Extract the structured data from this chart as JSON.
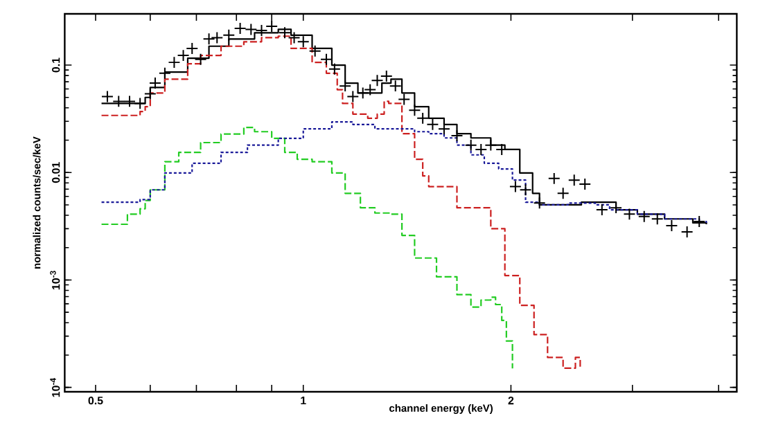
{
  "chart_data": {
    "type": "step",
    "xlabel": "channel energy (keV)",
    "ylabel": "normalized counts/sec/keV",
    "log": "xy",
    "grid": false,
    "xlim": [
      0.451,
      4.25
    ],
    "ylim": [
      9.1e-05,
      0.3
    ],
    "xticks": [
      0.5,
      {
        "value": 0.6,
        "label": null
      },
      {
        "value": 0.7,
        "label": null
      },
      {
        "value": 0.8,
        "label": null
      },
      {
        "value": 0.9,
        "label": null
      },
      1,
      2,
      {
        "value": 3,
        "label": null
      },
      {
        "value": 4,
        "label": null
      }
    ],
    "yticks": [
      {
        "value": 0.0001,
        "label": "10$^{-4}$"
      },
      {
        "value": 0.001,
        "label": "10$^{-3}$"
      },
      0.01,
      0.1
    ],
    "series": [
      {
        "type": "scatter",
        "marker": "cross",
        "color": "#000000",
        "x": [
          0.52,
          0.54,
          0.56,
          0.58,
          0.6,
          0.61,
          0.63,
          0.65,
          0.67,
          0.69,
          0.71,
          0.73,
          0.75,
          0.78,
          0.81,
          0.84,
          0.87,
          0.9,
          0.94,
          0.97,
          1.0,
          1.04,
          1.08,
          1.11,
          1.15,
          1.18,
          1.22,
          1.25,
          1.28,
          1.32,
          1.36,
          1.4,
          1.45,
          1.49,
          1.54,
          1.6,
          1.67,
          1.75,
          1.81,
          1.87,
          1.94,
          2.03,
          2.1,
          2.2,
          2.31,
          2.38,
          2.47,
          2.56,
          2.71,
          2.84,
          2.97,
          3.12,
          3.26,
          3.42,
          3.6,
          3.75
        ],
        "values": [
          0.051,
          0.046,
          0.046,
          0.044,
          0.054,
          0.068,
          0.084,
          0.106,
          0.123,
          0.143,
          0.113,
          0.175,
          0.18,
          0.19,
          0.22,
          0.215,
          0.21,
          0.23,
          0.2,
          0.18,
          0.165,
          0.135,
          0.113,
          0.092,
          0.064,
          0.051,
          0.055,
          0.059,
          0.072,
          0.079,
          0.064,
          0.048,
          0.038,
          0.032,
          0.028,
          0.0255,
          0.022,
          0.018,
          0.0164,
          0.018,
          0.0164,
          0.0074,
          0.0069,
          0.0052,
          0.0088,
          0.0064,
          0.0085,
          0.0078,
          0.0045,
          0.0047,
          0.0041,
          0.0039,
          0.0037,
          0.0032,
          0.0028,
          0.0035
        ]
      },
      {
        "line_style": "solid",
        "color": "#000000",
        "x": [
          0.51,
          0.58,
          0.59,
          0.6,
          0.63,
          0.68,
          0.73,
          0.78,
          0.85,
          0.92,
          0.96,
          1.03,
          1.1,
          1.15,
          1.2,
          1.24,
          1.3,
          1.34,
          1.39,
          1.45,
          1.52,
          1.6,
          1.67,
          1.75,
          1.87,
          1.96,
          2.06,
          2.15,
          2.2,
          2.53,
          2.71,
          2.84,
          3.05,
          3.34,
          3.67,
          3.84
        ],
        "values": [
          0.044,
          0.044,
          0.05,
          0.062,
          0.086,
          0.116,
          0.15,
          0.175,
          0.2,
          0.215,
          0.19,
          0.143,
          0.1,
          0.068,
          0.055,
          0.055,
          0.068,
          0.074,
          0.055,
          0.041,
          0.032,
          0.028,
          0.023,
          0.021,
          0.018,
          0.0164,
          0.0099,
          0.0064,
          0.005,
          0.0053,
          0.0053,
          0.0045,
          0.0041,
          0.0037,
          0.0034,
          0.0033
        ]
      },
      {
        "line_style": "dashed",
        "color": "#cc2020",
        "x": [
          0.51,
          0.58,
          0.59,
          0.6,
          0.63,
          0.68,
          0.71,
          0.76,
          0.82,
          0.87,
          0.92,
          0.96,
          1.03,
          1.08,
          1.12,
          1.14,
          1.18,
          1.24,
          1.28,
          1.31,
          1.33,
          1.39,
          1.45,
          1.49,
          1.52,
          1.67,
          1.87,
          1.96,
          2.06,
          2.16,
          2.26,
          2.38,
          2.48,
          2.52
        ],
        "values": [
          0.034,
          0.037,
          0.041,
          0.055,
          0.074,
          0.103,
          0.123,
          0.15,
          0.165,
          0.18,
          0.186,
          0.143,
          0.106,
          0.084,
          0.059,
          0.044,
          0.035,
          0.032,
          0.035,
          0.046,
          0.044,
          0.023,
          0.0133,
          0.0093,
          0.0074,
          0.0047,
          0.003,
          0.0011,
          0.00058,
          0.00031,
          0.00019,
          0.000151,
          0.00019,
          0.00015
        ]
      },
      {
        "line_style": "dashed",
        "color": "#22cc22",
        "x": [
          0.51,
          0.556,
          0.58,
          0.59,
          0.6,
          0.63,
          0.66,
          0.71,
          0.76,
          0.82,
          0.85,
          0.9,
          0.94,
          0.98,
          1.03,
          1.1,
          1.15,
          1.21,
          1.27,
          1.34,
          1.39,
          1.45,
          1.56,
          1.67,
          1.75,
          1.81,
          1.87,
          1.9,
          1.94,
          1.97,
          2.01
        ],
        "values": [
          0.0033,
          0.0041,
          0.0046,
          0.0055,
          0.0069,
          0.0126,
          0.0154,
          0.019,
          0.0228,
          0.0263,
          0.024,
          0.0208,
          0.0154,
          0.0133,
          0.0126,
          0.0099,
          0.0064,
          0.0047,
          0.0042,
          0.0041,
          0.0026,
          0.0016,
          0.00107,
          0.00073,
          0.00056,
          0.00065,
          0.00069,
          0.00059,
          0.00042,
          0.00027,
          0.00015
        ]
      },
      {
        "line_style": "dotted",
        "color": "#1a1a99",
        "x": [
          0.51,
          0.58,
          0.6,
          0.63,
          0.69,
          0.76,
          0.83,
          0.92,
          1.0,
          1.1,
          1.18,
          1.27,
          1.45,
          1.52,
          1.6,
          1.67,
          1.75,
          1.83,
          1.92,
          2.01,
          2.1,
          2.2,
          2.42,
          2.65,
          2.78,
          3.05,
          3.34,
          3.75,
          3.84
        ],
        "values": [
          0.0053,
          0.0056,
          0.0069,
          0.0099,
          0.0122,
          0.0154,
          0.018,
          0.0208,
          0.0255,
          0.0296,
          0.028,
          0.0255,
          0.024,
          0.023,
          0.021,
          0.018,
          0.0146,
          0.0122,
          0.0108,
          0.0085,
          0.0053,
          0.005,
          0.0052,
          0.005,
          0.0045,
          0.0041,
          0.0037,
          0.0035,
          0.0034
        ]
      }
    ]
  }
}
